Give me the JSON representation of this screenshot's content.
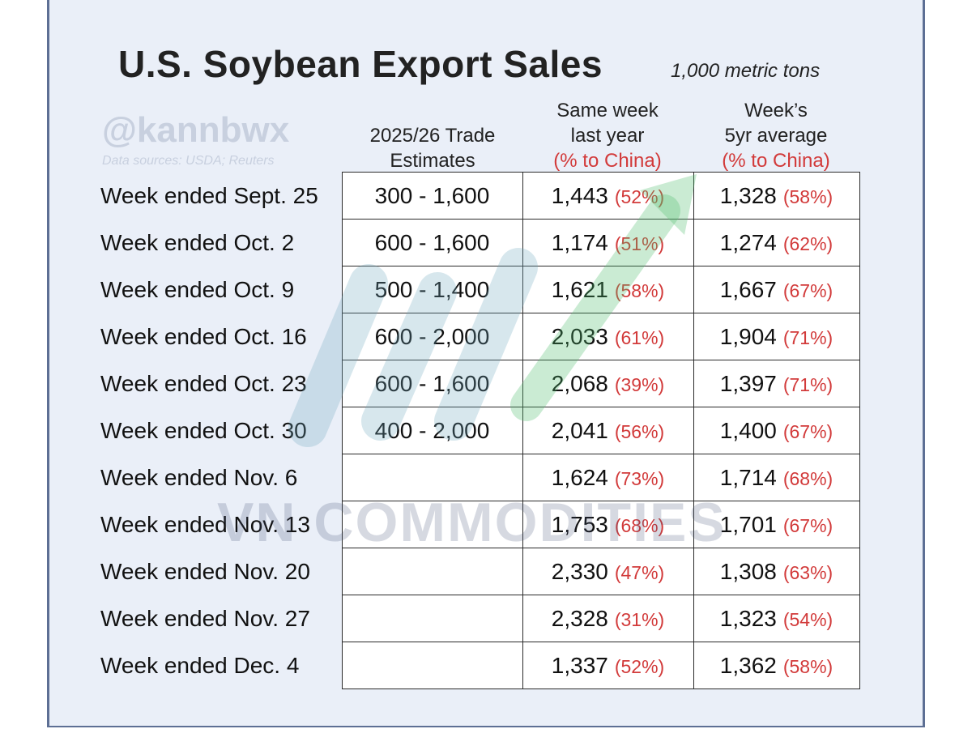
{
  "title": "U.S. Soybean Export Sales",
  "unit": "1,000 metric tons",
  "watermark": {
    "handle": "@kannbwx",
    "sources": "Data sources: USDA; Reuters",
    "brand": "VN COMMODITIES"
  },
  "columns": {
    "estimates": {
      "line1": "2025/26 Trade",
      "line2": "Estimates"
    },
    "last_year": {
      "line1": "Same week",
      "line2": "last year",
      "line3": "(% to China)"
    },
    "avg5yr": {
      "line1": "Week’s",
      "line2": "5yr average",
      "line3": "(% to China)"
    }
  },
  "colors": {
    "percent": "#d23a3a",
    "background": "#eaeff8",
    "border": "#5d6f94"
  },
  "chart_data": {
    "type": "table",
    "title": "U.S. Soybean Export Sales",
    "unit": "1,000 metric tons",
    "headers": [
      "",
      "2025/26 Trade Estimates",
      "Same week last year (% to China)",
      "Week’s 5yr average (% to China)"
    ],
    "rows": [
      {
        "week": "Week ended Sept. 25",
        "estimate": "300 - 1,600",
        "last_year": "1,443",
        "last_year_pct": "(52%)",
        "avg5yr": "1,328",
        "avg5yr_pct": "(58%)"
      },
      {
        "week": "Week ended Oct. 2",
        "estimate": "600 - 1,600",
        "last_year": "1,174",
        "last_year_pct": "(51%)",
        "avg5yr": "1,274",
        "avg5yr_pct": "(62%)"
      },
      {
        "week": "Week ended Oct. 9",
        "estimate": "500 - 1,400",
        "last_year": "1,621",
        "last_year_pct": "(58%)",
        "avg5yr": "1,667",
        "avg5yr_pct": "(67%)"
      },
      {
        "week": "Week ended Oct. 16",
        "estimate": "600 - 2,000",
        "last_year": "2,033",
        "last_year_pct": "(61%)",
        "avg5yr": "1,904",
        "avg5yr_pct": "(71%)"
      },
      {
        "week": "Week ended Oct. 23",
        "estimate": "600 - 1,600",
        "last_year": "2,068",
        "last_year_pct": "(39%)",
        "avg5yr": "1,397",
        "avg5yr_pct": "(71%)"
      },
      {
        "week": "Week ended Oct. 30",
        "estimate": "400 - 2,000",
        "last_year": "2,041",
        "last_year_pct": "(56%)",
        "avg5yr": "1,400",
        "avg5yr_pct": "(67%)"
      },
      {
        "week": "Week ended Nov. 6",
        "estimate": "",
        "last_year": "1,624",
        "last_year_pct": "(73%)",
        "avg5yr": "1,714",
        "avg5yr_pct": "(68%)"
      },
      {
        "week": "Week ended Nov. 13",
        "estimate": "",
        "last_year": "1,753",
        "last_year_pct": "(68%)",
        "avg5yr": "1,701",
        "avg5yr_pct": "(67%)"
      },
      {
        "week": "Week ended Nov. 20",
        "estimate": "",
        "last_year": "2,330",
        "last_year_pct": "(47%)",
        "avg5yr": "1,308",
        "avg5yr_pct": "(63%)"
      },
      {
        "week": "Week ended Nov. 27",
        "estimate": "",
        "last_year": "2,328",
        "last_year_pct": "(31%)",
        "avg5yr": "1,323",
        "avg5yr_pct": "(54%)"
      },
      {
        "week": "Week ended Dec. 4",
        "estimate": "",
        "last_year": "1,337",
        "last_year_pct": "(52%)",
        "avg5yr": "1,362",
        "avg5yr_pct": "(58%)"
      }
    ]
  }
}
